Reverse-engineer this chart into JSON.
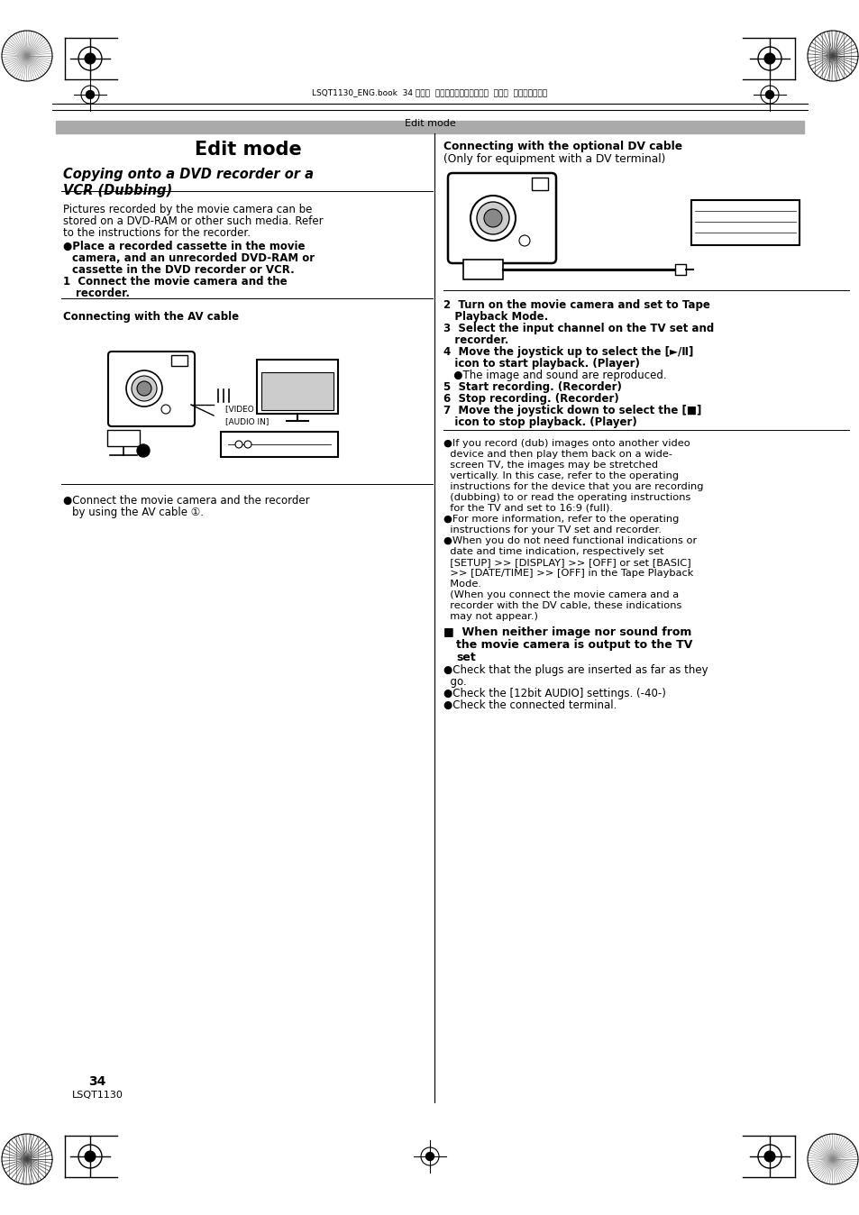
{
  "page_bg": "#ffffff",
  "top_label": "LSQT1130_ENG.book  34 ページ  ２００６年１２月１６日  土曜日  午後８時４５分",
  "header_text": "Edit mode",
  "title_edit_mode": "Edit mode",
  "subtitle": "Copying onto a DVD recorder or a\nVCR (Dubbing)",
  "section_dv_title": "Connecting with the optional DV cable",
  "section_dv_subtitle": "(Only for equipment with a DV terminal)",
  "section_av": "Connecting with the AV cable",
  "page_number": "34",
  "page_code": "LSQT1130"
}
